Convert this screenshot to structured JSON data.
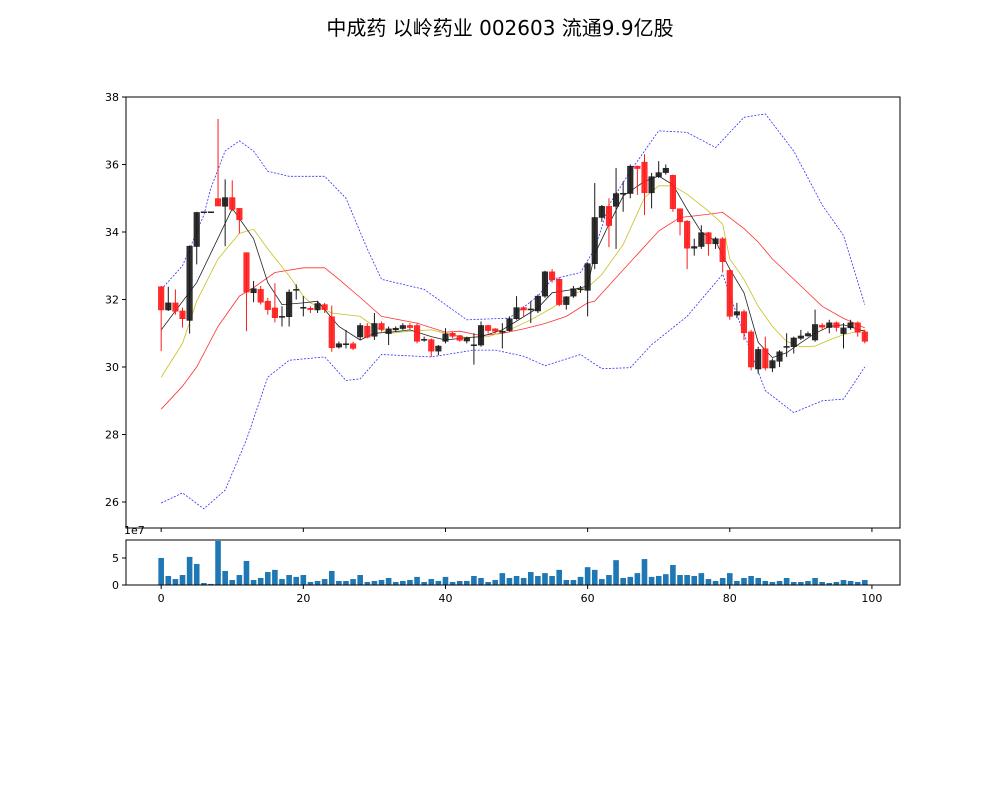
{
  "chart_data": {
    "type": "candlestick",
    "title": "中成药 以岭药业 002603 流通9.9亿股",
    "xlim": [
      -4.95,
      103.95
    ],
    "ylim": [
      25.23,
      38.0
    ],
    "x_ticks": [
      0,
      20,
      40,
      60,
      80,
      100
    ],
    "y_ticks": [
      26,
      28,
      30,
      32,
      34,
      36,
      38
    ],
    "colors": {
      "up": "#1a1a1a",
      "down": "#ff1a1a",
      "ma5": "#222222",
      "ma10": "#c8c020",
      "ma20": "#ff3030",
      "band": "#3030ff",
      "volume": "#1f77b4"
    },
    "open": [
      32.38,
      31.69,
      31.9,
      31.66,
      31.38,
      33.57,
      34.6,
      34.6,
      34.99,
      34.76,
      35.02,
      34.7,
      33.39,
      32.2,
      32.3,
      31.95,
      31.75,
      31.5,
      31.49,
      32.28,
      31.77,
      31.74,
      31.69,
      31.85,
      31.49,
      30.59,
      30.69,
      30.69,
      30.89,
      31.21,
      30.91,
      31.29,
      30.99,
      31.1,
      31.14,
      31.23,
      31.23,
      30.8,
      30.81,
      30.47,
      30.76,
      31.0,
      30.93,
      30.77,
      30.65,
      30.65,
      31.23,
      31.13,
      31.05,
      31.08,
      31.43,
      31.76,
      31.72,
      31.66,
      32.1,
      32.82,
      32.6,
      31.85,
      32.1,
      32.3,
      32.27,
      33.06,
      34.43,
      34.76,
      34.76,
      35.12,
      35.14,
      35.95,
      36.07,
      35.16,
      35.64,
      35.76,
      35.68,
      34.69,
      34.32,
      33.52,
      33.57,
      33.98,
      33.65,
      33.8,
      32.86,
      31.54,
      31.64,
      31.04,
      29.94,
      30.54,
      29.97,
      30.17,
      30.61,
      30.6,
      30.85,
      30.92,
      30.8,
      31.24,
      31.17,
      31.31,
      30.99,
      31.16,
      31.31,
      31.04
    ],
    "close": [
      31.69,
      31.9,
      31.65,
      31.43,
      33.58,
      34.58,
      34.6,
      34.6,
      34.77,
      35.02,
      34.67,
      34.36,
      32.22,
      32.32,
      31.92,
      31.7,
      31.46,
      31.5,
      32.22,
      32.3,
      31.77,
      31.7,
      31.88,
      31.7,
      30.57,
      30.69,
      30.69,
      30.55,
      31.23,
      30.88,
      31.29,
      31.11,
      31.13,
      31.15,
      31.23,
      31.17,
      30.76,
      30.82,
      30.47,
      30.62,
      30.98,
      30.91,
      30.79,
      30.86,
      30.66,
      31.23,
      31.08,
      31.06,
      31.06,
      31.43,
      31.76,
      31.69,
      31.72,
      32.1,
      32.82,
      32.58,
      31.85,
      32.08,
      32.32,
      32.32,
      33.06,
      34.43,
      34.76,
      34.19,
      35.14,
      35.15,
      35.95,
      35.88,
      35.16,
      35.64,
      35.76,
      35.89,
      34.69,
      34.3,
      33.52,
      33.57,
      33.98,
      33.65,
      33.8,
      33.12,
      31.5,
      31.64,
      31.01,
      30.0,
      30.52,
      29.97,
      30.19,
      30.45,
      30.61,
      30.86,
      30.92,
      30.99,
      31.26,
      31.18,
      31.31,
      31.17,
      31.16,
      31.31,
      31.03,
      30.76
    ],
    "high": [
      32.4,
      32.38,
      32.3,
      31.76,
      33.6,
      34.6,
      34.6,
      34.6,
      37.35,
      35.56,
      35.53,
      34.7,
      33.39,
      32.55,
      32.4,
      32.05,
      32.48,
      31.8,
      32.3,
      32.45,
      32.1,
      31.8,
      31.95,
      31.9,
      31.82,
      30.75,
      31.1,
      30.75,
      31.3,
      31.3,
      31.6,
      31.35,
      31.2,
      31.2,
      31.3,
      31.3,
      31.3,
      30.9,
      30.85,
      30.65,
      31.15,
      31.05,
      30.95,
      30.9,
      31.0,
      31.35,
      31.25,
      31.15,
      31.3,
      31.5,
      32.1,
      31.8,
      31.95,
      32.15,
      32.85,
      32.9,
      32.65,
      32.1,
      32.4,
      32.4,
      33.1,
      35.45,
      34.8,
      35.0,
      35.9,
      35.5,
      36.0,
      35.97,
      36.3,
      35.75,
      36.1,
      36.0,
      35.7,
      34.7,
      34.35,
      33.8,
      34.2,
      34.0,
      33.85,
      33.85,
      32.9,
      31.9,
      31.7,
      31.1,
      30.6,
      30.9,
      30.25,
      30.5,
      31.0,
      30.9,
      31.1,
      31.05,
      31.7,
      31.3,
      31.4,
      31.35,
      31.3,
      31.4,
      31.35,
      31.1
    ],
    "low": [
      30.47,
      31.66,
      31.55,
      31.17,
      30.99,
      33.04,
      34.6,
      34.6,
      34.77,
      33.58,
      34.62,
      33.96,
      31.06,
      31.92,
      31.85,
      31.55,
      31.32,
      31.2,
      31.2,
      32.0,
      31.5,
      31.6,
      31.6,
      31.6,
      30.45,
      30.55,
      30.55,
      30.5,
      30.8,
      30.85,
      30.8,
      31.05,
      30.65,
      31.05,
      31.1,
      31.1,
      30.7,
      30.75,
      30.3,
      30.35,
      30.7,
      30.85,
      30.75,
      30.7,
      30.07,
      30.6,
      31.0,
      31.0,
      30.55,
      31.05,
      31.4,
      31.5,
      31.3,
      31.6,
      32.05,
      32.5,
      31.8,
      31.7,
      32.05,
      32.2,
      31.5,
      32.9,
      34.3,
      33.55,
      33.5,
      34.6,
      35.0,
      35.1,
      34.5,
      34.7,
      35.6,
      35.7,
      34.6,
      33.9,
      32.9,
      33.3,
      33.5,
      33.3,
      33.5,
      32.8,
      31.4,
      31.45,
      30.8,
      29.9,
      29.8,
      29.9,
      29.85,
      30.0,
      30.3,
      30.4,
      30.8,
      30.9,
      30.75,
      31.1,
      31.0,
      31.05,
      30.55,
      31.1,
      30.9,
      30.7
    ],
    "ma5": [
      [
        0,
        31.1
      ],
      [
        5,
        32.5
      ],
      [
        10,
        34.7
      ],
      [
        13,
        33.8
      ],
      [
        15,
        32.5
      ],
      [
        17,
        31.85
      ],
      [
        20,
        31.9
      ],
      [
        22,
        31.95
      ],
      [
        25,
        31.2
      ],
      [
        28,
        30.8
      ],
      [
        30,
        31.0
      ],
      [
        33,
        31.05
      ],
      [
        35,
        31.1
      ],
      [
        38,
        30.9
      ],
      [
        40,
        30.8
      ],
      [
        43,
        30.87
      ],
      [
        45,
        30.9
      ],
      [
        48,
        31.1
      ],
      [
        50,
        31.36
      ],
      [
        53,
        31.75
      ],
      [
        55,
        32.2
      ],
      [
        58,
        32.3
      ],
      [
        60,
        32.4
      ],
      [
        61,
        33.34
      ],
      [
        63,
        34.23
      ],
      [
        65,
        35.07
      ],
      [
        68,
        35.5
      ],
      [
        70,
        35.66
      ],
      [
        72,
        35.4
      ],
      [
        74,
        34.67
      ],
      [
        76,
        34.0
      ],
      [
        78,
        33.73
      ],
      [
        79,
        33.3
      ],
      [
        80,
        32.9
      ],
      [
        82,
        32.2
      ],
      [
        84,
        30.73
      ],
      [
        86,
        30.28
      ],
      [
        88,
        30.42
      ],
      [
        90,
        30.72
      ],
      [
        92,
        31.0
      ],
      [
        94,
        31.2
      ],
      [
        96,
        31.25
      ],
      [
        99,
        31.06
      ]
    ],
    "ma10": [
      [
        0,
        29.7
      ],
      [
        3,
        30.7
      ],
      [
        5,
        31.95
      ],
      [
        8,
        33.2
      ],
      [
        11,
        33.96
      ],
      [
        13,
        34.08
      ],
      [
        15,
        33.5
      ],
      [
        18,
        32.7
      ],
      [
        20,
        32.1
      ],
      [
        21,
        31.9
      ],
      [
        24,
        31.6
      ],
      [
        28,
        31.5
      ],
      [
        30,
        31.2
      ],
      [
        32,
        31.0
      ],
      [
        35,
        31.06
      ],
      [
        38,
        31.1
      ],
      [
        40,
        31.0
      ],
      [
        43,
        30.87
      ],
      [
        46,
        30.9
      ],
      [
        49,
        31.1
      ],
      [
        52,
        31.4
      ],
      [
        55,
        31.75
      ],
      [
        58,
        32.15
      ],
      [
        60,
        32.35
      ],
      [
        62,
        32.74
      ],
      [
        65,
        33.63
      ],
      [
        68,
        35.02
      ],
      [
        70,
        35.37
      ],
      [
        72,
        35.37
      ],
      [
        74,
        35.12
      ],
      [
        77,
        34.62
      ],
      [
        79,
        34.23
      ],
      [
        80,
        33.2
      ],
      [
        82,
        32.6
      ],
      [
        84,
        31.8
      ],
      [
        86,
        31.2
      ],
      [
        88,
        30.76
      ],
      [
        90,
        30.6
      ],
      [
        92,
        30.62
      ],
      [
        94,
        30.8
      ],
      [
        96,
        30.96
      ],
      [
        99,
        31.1
      ]
    ],
    "ma20": [
      [
        0,
        28.75
      ],
      [
        3,
        29.43
      ],
      [
        5,
        30.0
      ],
      [
        8,
        31.2
      ],
      [
        11,
        32.1
      ],
      [
        13,
        32.35
      ],
      [
        16,
        32.8
      ],
      [
        20,
        32.94
      ],
      [
        23,
        32.94
      ],
      [
        25,
        32.6
      ],
      [
        28,
        32.06
      ],
      [
        31,
        31.5
      ],
      [
        36,
        31.3
      ],
      [
        40,
        31.03
      ],
      [
        42,
        31.06
      ],
      [
        45,
        30.93
      ],
      [
        48,
        31.0
      ],
      [
        51,
        31.13
      ],
      [
        54,
        31.29
      ],
      [
        57,
        31.5
      ],
      [
        60,
        31.9
      ],
      [
        61,
        31.95
      ],
      [
        64,
        32.65
      ],
      [
        67,
        33.34
      ],
      [
        70,
        34.03
      ],
      [
        73,
        34.43
      ],
      [
        76,
        34.5
      ],
      [
        79,
        34.58
      ],
      [
        82,
        34.1
      ],
      [
        84,
        33.7
      ],
      [
        86,
        33.2
      ],
      [
        90,
        32.4
      ],
      [
        93,
        31.8
      ],
      [
        96,
        31.44
      ],
      [
        99,
        31.16
      ]
    ],
    "boll_upper": [
      [
        0,
        32.3
      ],
      [
        3,
        33.0
      ],
      [
        6,
        34.5
      ],
      [
        7,
        35.3
      ],
      [
        9,
        36.4
      ],
      [
        11,
        36.7
      ],
      [
        13,
        36.4
      ],
      [
        15,
        35.8
      ],
      [
        18,
        35.65
      ],
      [
        23,
        35.65
      ],
      [
        26,
        35.0
      ],
      [
        29,
        33.5
      ],
      [
        31,
        32.6
      ],
      [
        37,
        32.3
      ],
      [
        40,
        31.85
      ],
      [
        43,
        31.4
      ],
      [
        49,
        31.45
      ],
      [
        53,
        32.1
      ],
      [
        55,
        32.6
      ],
      [
        59,
        32.8
      ],
      [
        61,
        33.5
      ],
      [
        63,
        34.8
      ],
      [
        66,
        35.8
      ],
      [
        70,
        37.0
      ],
      [
        74,
        36.95
      ],
      [
        78,
        36.5
      ],
      [
        82,
        37.4
      ],
      [
        85,
        37.5
      ],
      [
        89,
        36.4
      ],
      [
        93,
        34.8
      ],
      [
        96,
        33.9
      ],
      [
        99,
        31.85
      ]
    ],
    "boll_lower": [
      [
        0,
        25.97
      ],
      [
        3,
        26.27
      ],
      [
        6,
        25.8
      ],
      [
        9,
        26.35
      ],
      [
        12,
        27.85
      ],
      [
        15,
        29.7
      ],
      [
        18,
        30.2
      ],
      [
        23,
        30.3
      ],
      [
        26,
        29.6
      ],
      [
        28,
        29.65
      ],
      [
        31,
        30.37
      ],
      [
        38,
        30.3
      ],
      [
        44,
        30.5
      ],
      [
        47,
        30.5
      ],
      [
        51,
        30.32
      ],
      [
        54,
        30.04
      ],
      [
        59,
        30.37
      ],
      [
        62,
        29.95
      ],
      [
        66,
        29.98
      ],
      [
        69,
        30.66
      ],
      [
        74,
        31.5
      ],
      [
        79,
        32.75
      ],
      [
        81,
        31.55
      ],
      [
        85,
        29.3
      ],
      [
        89,
        28.65
      ],
      [
        93,
        29.0
      ],
      [
        96,
        29.05
      ],
      [
        99,
        30.0
      ]
    ],
    "volume_scale_label": "1e7",
    "volume_ylim": [
      0,
      8.33
    ],
    "volume_ticks": [
      0,
      5
    ],
    "volume": [
      5.0,
      1.67,
      1.1,
      1.85,
      5.2,
      3.9,
      0.37,
      0.2,
      8.15,
      2.6,
      0.93,
      1.85,
      4.45,
      0.93,
      1.3,
      2.4,
      2.8,
      1.1,
      1.85,
      1.5,
      1.85,
      0.56,
      0.74,
      1.1,
      2.6,
      0.74,
      0.74,
      1.1,
      1.85,
      0.56,
      0.74,
      0.93,
      1.3,
      0.56,
      0.74,
      0.93,
      1.5,
      0.56,
      1.1,
      0.74,
      1.5,
      0.56,
      0.74,
      0.74,
      1.67,
      1.3,
      0.56,
      0.93,
      2.2,
      1.3,
      1.67,
      1.3,
      2.4,
      1.67,
      2.2,
      1.67,
      2.8,
      0.93,
      0.93,
      1.5,
      3.3,
      2.8,
      1.1,
      1.85,
      4.6,
      1.3,
      1.5,
      2.2,
      4.8,
      1.5,
      1.67,
      2.0,
      3.7,
      1.85,
      1.85,
      1.67,
      2.2,
      1.1,
      0.74,
      1.3,
      2.2,
      0.74,
      1.3,
      1.67,
      1.3,
      0.74,
      0.56,
      0.74,
      1.3,
      0.56,
      0.56,
      0.74,
      1.3,
      0.56,
      0.37,
      0.56,
      0.93,
      0.74,
      0.56,
      0.93
    ]
  }
}
